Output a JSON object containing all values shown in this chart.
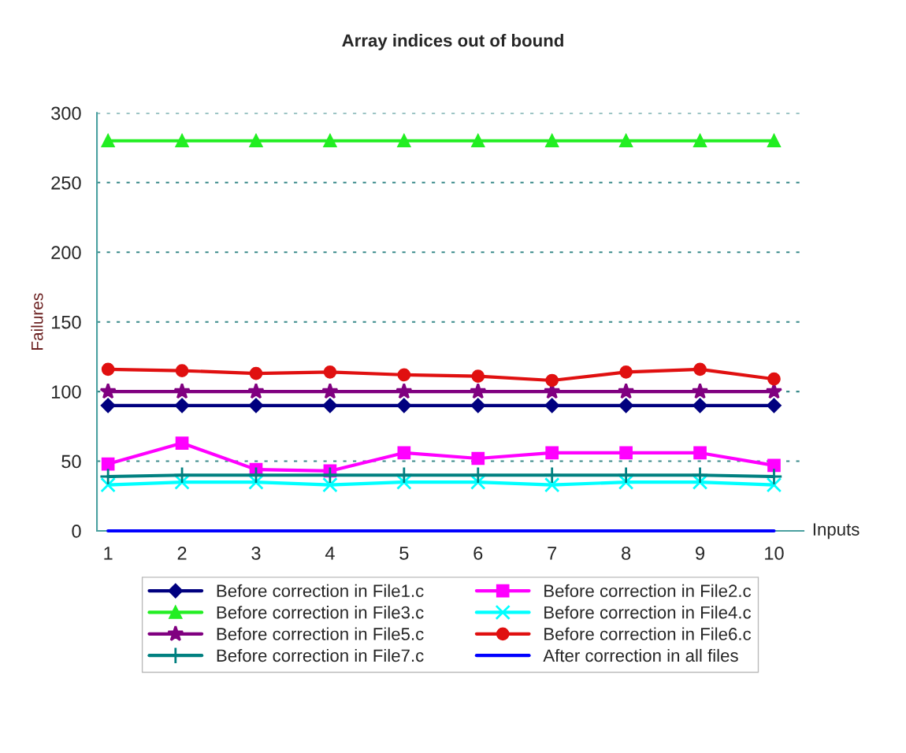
{
  "chart_data": {
    "type": "line",
    "title": "Array indices out of bound",
    "xlabel": "Inputs",
    "ylabel": "Failures",
    "categories": [
      "1",
      "2",
      "3",
      "4",
      "5",
      "6",
      "7",
      "8",
      "9",
      "10"
    ],
    "ylim": [
      0,
      300
    ],
    "yticks": [
      0,
      50,
      100,
      150,
      200,
      250,
      300
    ],
    "grid": "y",
    "legend": "bottom",
    "series": [
      {
        "name": "Before correction in File1.c",
        "color": "#00007f",
        "marker": "diamond",
        "values": [
          90,
          90,
          90,
          90,
          90,
          90,
          90,
          90,
          90,
          90
        ]
      },
      {
        "name": "Before correction in File2.c",
        "color": "#ff00ff",
        "marker": "square",
        "values": [
          48,
          63,
          44,
          43,
          56,
          52,
          56,
          56,
          56,
          47
        ]
      },
      {
        "name": "Before correction in File3.c",
        "color": "#22ee22",
        "marker": "triangle",
        "values": [
          280,
          280,
          280,
          280,
          280,
          280,
          280,
          280,
          280,
          280
        ]
      },
      {
        "name": "Before correction in File4.c",
        "color": "#00ffff",
        "marker": "cross",
        "values": [
          33,
          35,
          35,
          33,
          35,
          35,
          33,
          35,
          35,
          33
        ]
      },
      {
        "name": "Before correction in File5.c",
        "color": "#800080",
        "marker": "star",
        "values": [
          100,
          100,
          100,
          100,
          100,
          100,
          100,
          100,
          100,
          100
        ]
      },
      {
        "name": "Before correction in File6.c",
        "color": "#e01010",
        "marker": "circle",
        "values": [
          116,
          115,
          113,
          114,
          112,
          111,
          108,
          114,
          116,
          109
        ]
      },
      {
        "name": "Before correction in File7.c",
        "color": "#008080",
        "marker": "plus",
        "values": [
          39,
          40,
          40,
          40,
          40,
          40,
          40,
          40,
          40,
          39
        ]
      },
      {
        "name": "After correction in all files",
        "color": "#0000ff",
        "marker": "none",
        "values": [
          0,
          0,
          0,
          0,
          0,
          0,
          0,
          0,
          0,
          0
        ]
      }
    ]
  }
}
